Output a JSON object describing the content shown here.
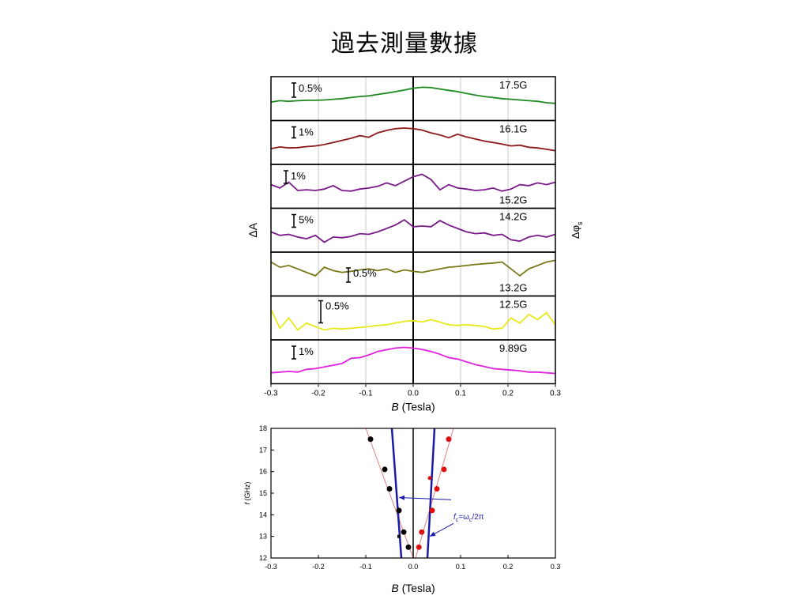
{
  "title": "過去測量數據",
  "chart_data": [
    {
      "type": "line",
      "xlabel_italic": "B",
      "xlabel_rest": " (Tesla)",
      "ylabel_left": "ΔA",
      "ylabel_right_main": "Δφ",
      "ylabel_right_sub": "s",
      "xlim": [
        -0.3,
        0.3
      ],
      "xticks": [
        "-0.3",
        "-0.2",
        "-0.1",
        "0.0",
        "0.1",
        "0.2",
        "0.3"
      ],
      "grid_x": [
        -0.2,
        -0.1,
        0.1,
        0.2
      ],
      "panels": [
        {
          "freq": "17.5G",
          "scale": "0.5%",
          "color": "#1f8a1f",
          "label_pos": "top",
          "ys": [
            0.6,
            0.56,
            0.58,
            0.56,
            0.55,
            0.55,
            0.54,
            0.52,
            0.5,
            0.47,
            0.44,
            0.42,
            0.38,
            0.34,
            0.3,
            0.25,
            0.2,
            0.17,
            0.18,
            0.22,
            0.26,
            0.3,
            0.35,
            0.4,
            0.44,
            0.47,
            0.5,
            0.52,
            0.54,
            0.56,
            0.58,
            0.62,
            0.64
          ]
        },
        {
          "freq": "16.1G",
          "scale": "1%",
          "color": "#8b1a1a",
          "label_pos": "top",
          "ys": [
            0.68,
            0.63,
            0.66,
            0.65,
            0.62,
            0.6,
            0.56,
            0.5,
            0.44,
            0.38,
            0.3,
            0.35,
            0.22,
            0.15,
            0.1,
            0.08,
            0.1,
            0.14,
            0.22,
            0.28,
            0.36,
            0.26,
            0.34,
            0.4,
            0.46,
            0.5,
            0.55,
            0.6,
            0.58,
            0.64,
            0.66,
            0.7,
            0.74
          ]
        },
        {
          "freq": "15.2G",
          "scale": "1%",
          "color": "#7a1a8a",
          "label_pos": "bottom",
          "ys": [
            0.45,
            0.55,
            0.38,
            0.62,
            0.6,
            0.62,
            0.58,
            0.48,
            0.62,
            0.64,
            0.58,
            0.55,
            0.5,
            0.4,
            0.48,
            0.35,
            0.22,
            0.15,
            0.3,
            0.6,
            0.45,
            0.55,
            0.58,
            0.62,
            0.6,
            0.55,
            0.64,
            0.58,
            0.45,
            0.48,
            0.4,
            0.45,
            0.38
          ]
        },
        {
          "freq": "14.2G",
          "scale": "5%",
          "color": "#7a1a8a",
          "label_pos": "top",
          "ys": [
            0.55,
            0.65,
            0.62,
            0.7,
            0.75,
            0.65,
            0.85,
            0.7,
            0.72,
            0.68,
            0.6,
            0.62,
            0.55,
            0.45,
            0.35,
            0.2,
            0.4,
            0.38,
            0.4,
            0.22,
            0.35,
            0.45,
            0.55,
            0.6,
            0.58,
            0.65,
            0.62,
            0.78,
            0.82,
            0.7,
            0.65,
            0.7,
            0.62
          ]
        },
        {
          "freq": "13.2G",
          "scale": "0.5%",
          "color": "#7a7a1a",
          "label_pos": "bottom",
          "ys": [
            0.15,
            0.3,
            0.25,
            0.35,
            0.45,
            0.55,
            0.3,
            0.4,
            0.45,
            0.42,
            0.38,
            0.35,
            0.4,
            0.35,
            0.45,
            0.38,
            0.42,
            0.45,
            0.4,
            0.35,
            0.3,
            0.28,
            0.25,
            0.22,
            0.2,
            0.18,
            0.15,
            0.35,
            0.55,
            0.35,
            0.25,
            0.15,
            0.1
          ]
        },
        {
          "freq": "12.5G",
          "scale": "0.5%",
          "color": "#e8e81a",
          "label_pos": "top",
          "ys": [
            0.25,
            0.8,
            0.5,
            0.85,
            0.65,
            0.75,
            0.85,
            0.8,
            0.82,
            0.8,
            0.78,
            0.75,
            0.72,
            0.7,
            0.65,
            0.6,
            0.58,
            0.62,
            0.55,
            0.62,
            0.7,
            0.72,
            0.7,
            0.72,
            0.75,
            0.82,
            0.8,
            0.5,
            0.65,
            0.4,
            0.55,
            0.35,
            0.7
          ]
        },
        {
          "freq": "9.89G",
          "scale": "1%",
          "color": "#e020e0",
          "label_pos": "top",
          "ys": [
            0.82,
            0.8,
            0.78,
            0.8,
            0.72,
            0.7,
            0.65,
            0.6,
            0.55,
            0.4,
            0.38,
            0.3,
            0.2,
            0.15,
            0.1,
            0.08,
            0.1,
            0.14,
            0.2,
            0.28,
            0.38,
            0.42,
            0.5,
            0.58,
            0.64,
            0.7,
            0.72,
            0.74,
            0.76,
            0.8,
            0.8,
            0.82,
            0.84
          ]
        }
      ]
    },
    {
      "type": "scatter",
      "xlabel_italic": "B",
      "xlabel_rest": " (Tesla)",
      "ylabel_italic": "f",
      "ylabel_rest": " (GHz)",
      "xlim": [
        -0.3,
        0.3
      ],
      "ylim": [
        12,
        18
      ],
      "xticks": [
        "-0.3",
        "-0.2",
        "-0.1",
        "0.0",
        "0.1",
        "0.2",
        "0.3"
      ],
      "yticks": [
        "12",
        "13",
        "14",
        "15",
        "16",
        "17",
        "18"
      ],
      "series": [
        {
          "color": "#000000",
          "points": [
            [
              -0.09,
              17.5
            ],
            [
              -0.06,
              16.1
            ],
            [
              -0.05,
              15.2
            ],
            [
              -0.03,
              14.2
            ],
            [
              -0.02,
              13.2
            ],
            [
              -0.01,
              12.5
            ]
          ]
        },
        {
          "color": "#e01010",
          "points": [
            [
              0.075,
              17.5
            ],
            [
              0.065,
              16.1
            ],
            [
              0.05,
              15.2
            ],
            [
              0.04,
              14.2
            ],
            [
              0.018,
              13.2
            ],
            [
              0.012,
              12.5
            ]
          ]
        },
        {
          "color": "#e01010",
          "points": [
            [
              0.035,
              15.7
            ]
          ],
          "small": true
        },
        {
          "color": "#000000",
          "points": [
            [
              -0.03,
              13.0
            ]
          ],
          "small": true,
          "square": true
        }
      ],
      "fit_lines": [
        {
          "color": "#e08080",
          "from": [
            -0.1,
            18
          ],
          "to": [
            0,
            12
          ]
        },
        {
          "color": "#e08080",
          "from": [
            0.085,
            18
          ],
          "to": [
            0.005,
            12
          ]
        }
      ],
      "cyclotron_lines": [
        {
          "color": "#1a1aaa",
          "from": [
            -0.025,
            12
          ],
          "to": [
            -0.045,
            18
          ]
        },
        {
          "color": "#1a1aaa",
          "from": [
            0.03,
            12
          ],
          "to": [
            0.045,
            18
          ]
        }
      ],
      "annotation": {
        "main_f": "f",
        "sub_c": "c",
        "eq": "=ω",
        "sub_c2": "c",
        "rest": "/2π",
        "color": "#1a1aaa",
        "at": [
          0.085,
          13.8
        ],
        "arrows": [
          [
            [
              0.08,
              14.7
            ],
            [
              -0.03,
              14.8
            ]
          ],
          [
            [
              0.085,
              13.6
            ],
            [
              0.035,
              13.0
            ]
          ]
        ]
      }
    }
  ]
}
